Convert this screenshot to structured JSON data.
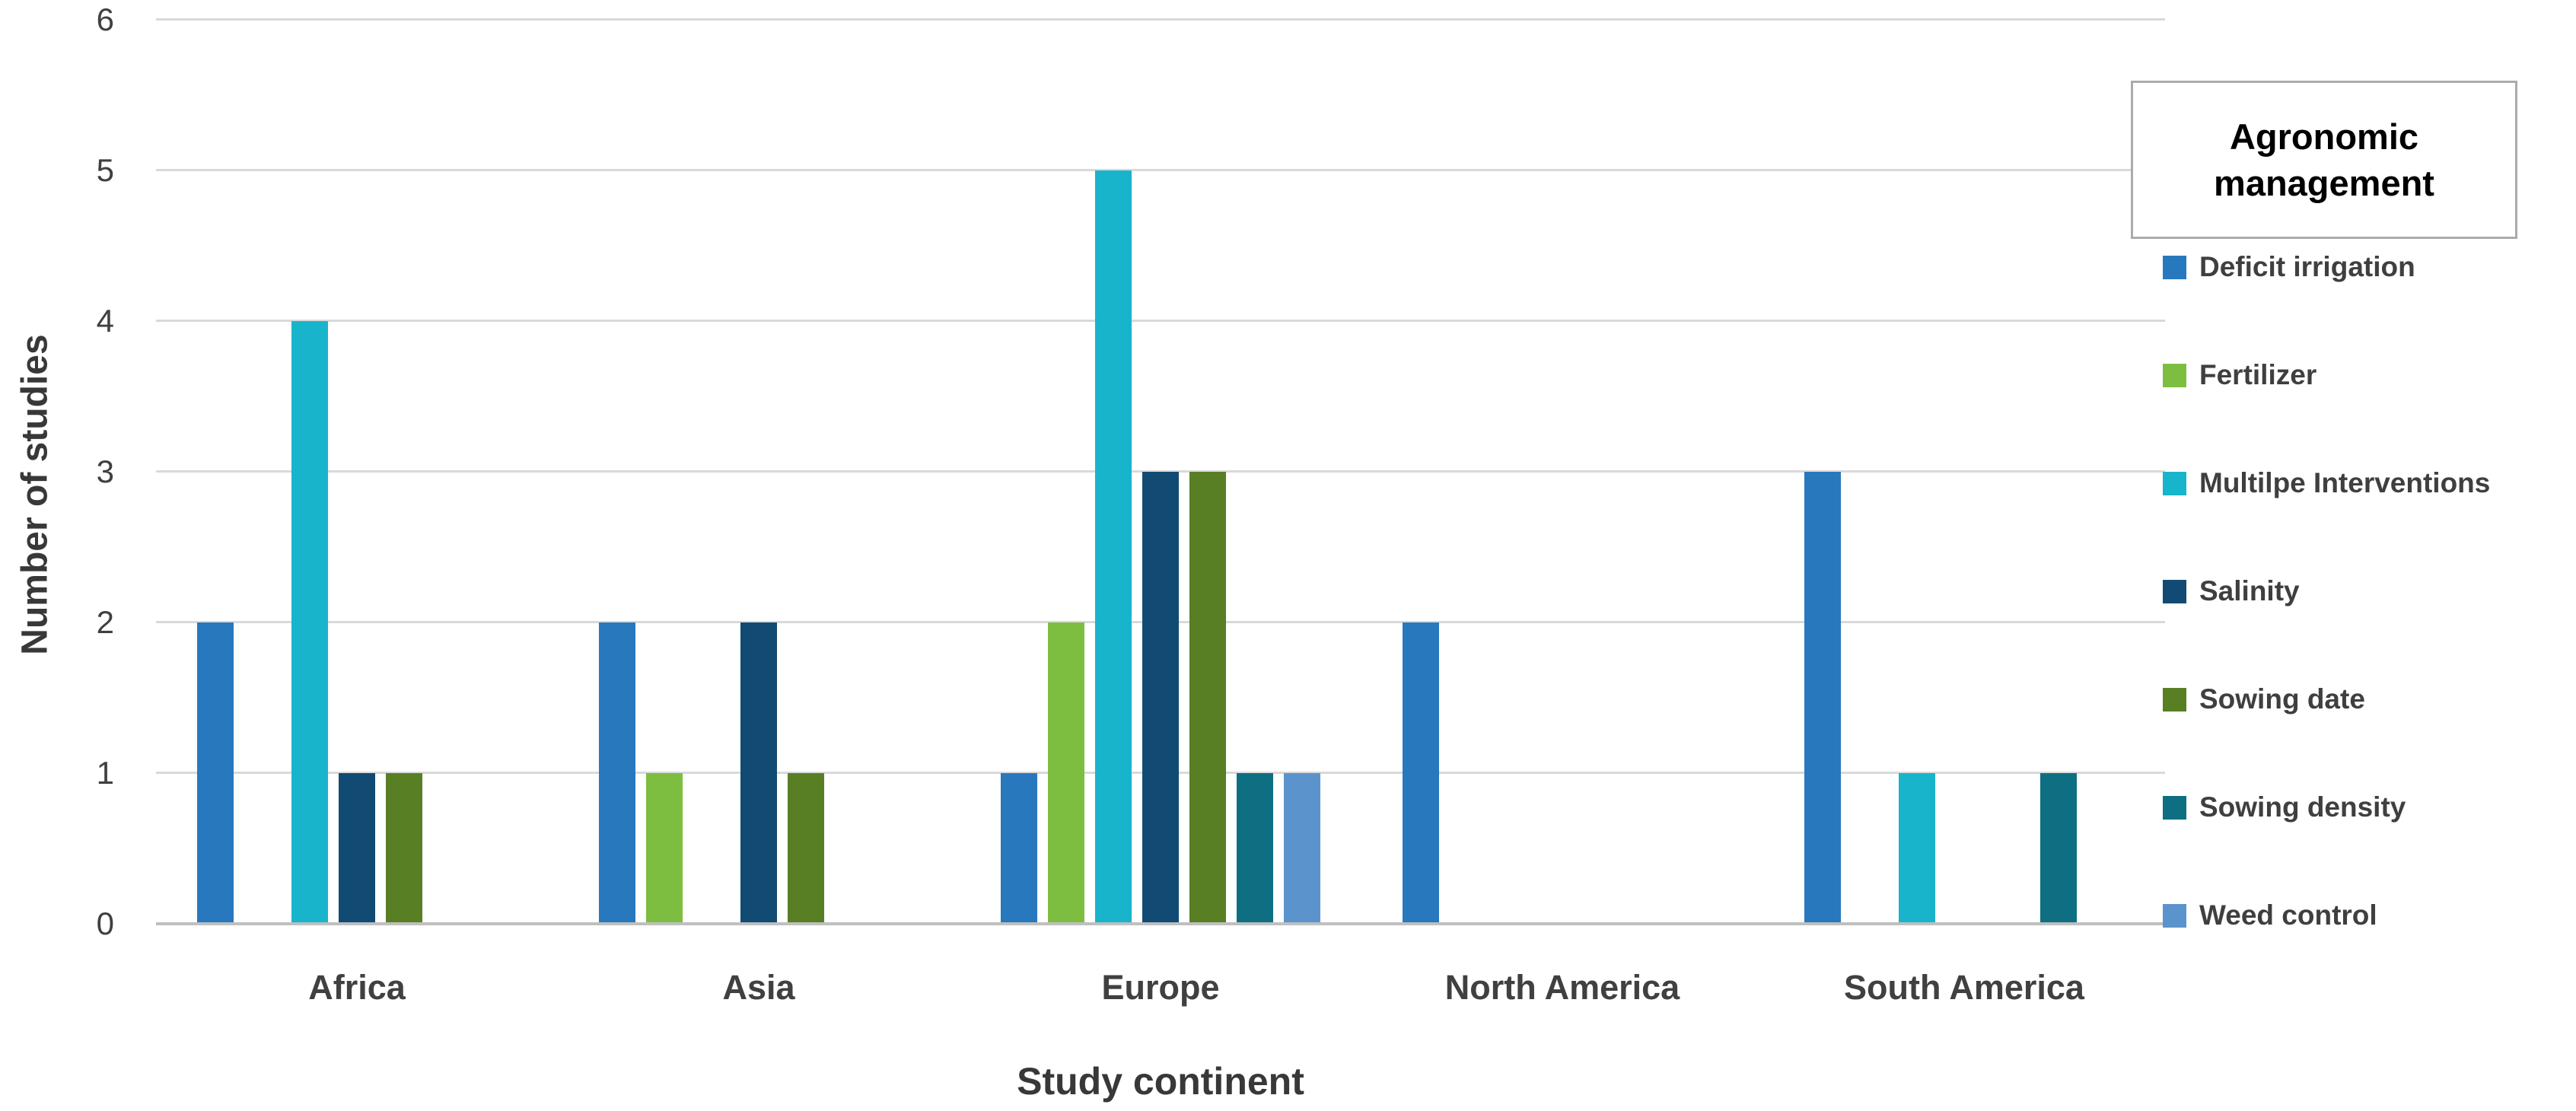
{
  "figure": {
    "ylabel": "Number of studies",
    "xlabel": "Study continent",
    "legend_title": "Agronomic management"
  },
  "chart_data": {
    "type": "bar",
    "title": "",
    "xlabel": "Study continent",
    "ylabel": "Number of studies",
    "categories": [
      "Africa",
      "Asia",
      "Europe",
      "North America",
      "South America"
    ],
    "series": [
      {
        "name": "Deficit irrigation",
        "color": "#2878BE",
        "values": [
          2,
          2,
          1,
          2,
          3
        ]
      },
      {
        "name": "Fertilizer",
        "color": "#7DBE41",
        "values": [
          0,
          1,
          2,
          0,
          0
        ]
      },
      {
        "name": "Multilpe Interventions",
        "color": "#18B4CC",
        "values": [
          4,
          0,
          5,
          0,
          1
        ]
      },
      {
        "name": "Salinity",
        "color": "#114B73",
        "values": [
          1,
          2,
          3,
          0,
          0
        ]
      },
      {
        "name": "Sowing date",
        "color": "#587F24",
        "values": [
          1,
          1,
          3,
          0,
          0
        ]
      },
      {
        "name": "Sowing density",
        "color": "#0E6F82",
        "values": [
          0,
          0,
          1,
          0,
          1
        ]
      },
      {
        "name": "Weed control",
        "color": "#5B94CC",
        "values": [
          0,
          0,
          1,
          0,
          0
        ]
      }
    ],
    "ylim": [
      0,
      6
    ],
    "yticks": [
      0,
      1,
      2,
      3,
      4,
      5,
      6
    ],
    "grid": true,
    "legend_position": "right",
    "legend_title": "Agronomic management",
    "colors": {
      "gridline": "#D9D9D9",
      "axis_line": "#BFBFBF",
      "tick_text": "#404040",
      "axis_title_text": "#383838",
      "legend_text": "#3F3F3F"
    }
  }
}
